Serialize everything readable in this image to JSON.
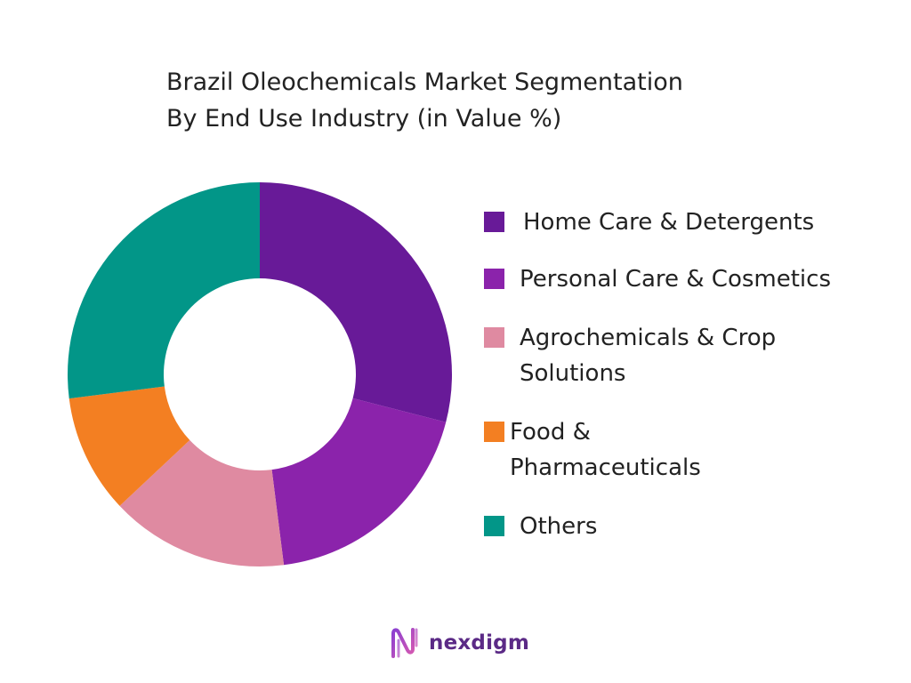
{
  "chart_data": {
    "type": "pie",
    "title": "Brazil Oleochemicals Market Segmentation",
    "subtitle": "By End Use Industry (in Value %)",
    "donut": true,
    "categories": [
      "Home Care & Detergents",
      "Personal Care & Cosmetics",
      "Agrochemicals & Crop Solutions",
      "Food & Pharmaceuticals",
      "Others"
    ],
    "values": [
      29,
      19,
      15,
      10,
      27
    ],
    "colors": [
      "#681a98",
      "#8b23ab",
      "#df8aa1",
      "#f37f22",
      "#029688"
    ],
    "legend_position": "right"
  },
  "legend": {
    "lines": [
      [
        "Home Care & Detergents"
      ],
      [
        "Personal Care & Cosmetics"
      ],
      [
        "Agrochemicals & Crop",
        "Solutions"
      ],
      [
        "Food &",
        "Pharmaceuticals"
      ],
      [
        "Others"
      ]
    ]
  },
  "logo": {
    "text": "nexdigm"
  }
}
